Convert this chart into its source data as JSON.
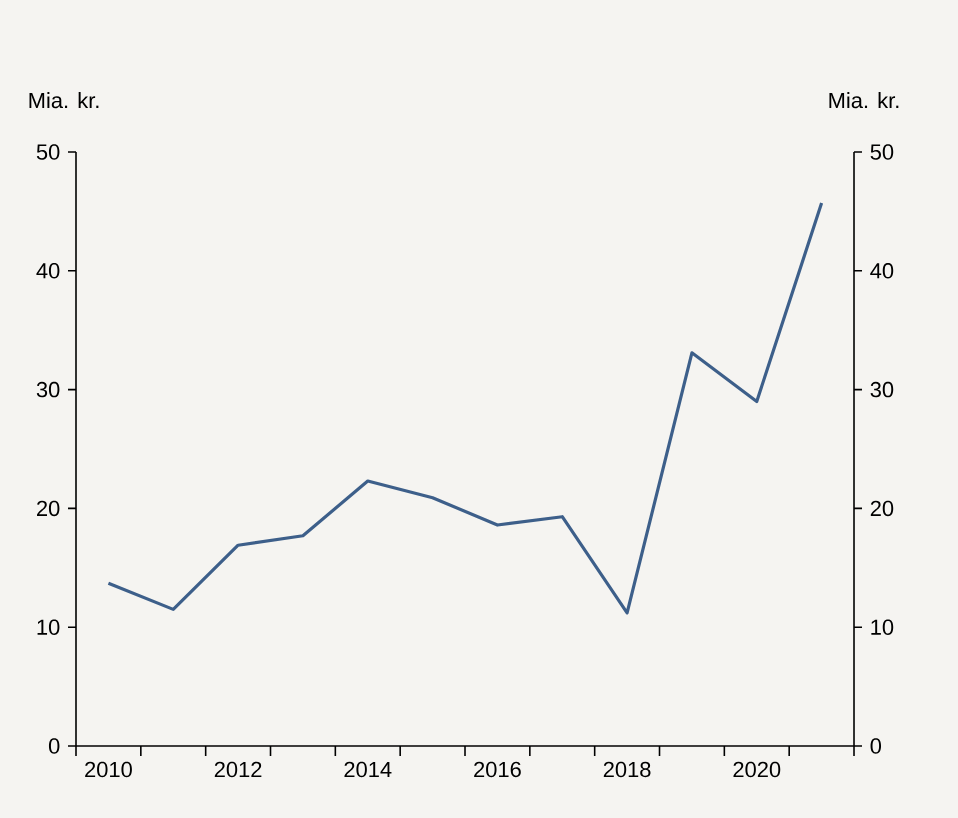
{
  "chart_data": {
    "type": "line",
    "ylabel": "Mia. kr.",
    "y2label": "Mia. kr.",
    "categories": [
      "2010",
      null,
      "2012",
      null,
      "2014",
      null,
      "2016",
      null,
      "2018",
      null,
      "2020",
      null
    ],
    "series": [
      {
        "color": "#3d5f8a",
        "values": [
          13.7,
          11.5,
          16.9,
          17.7,
          22.3,
          20.9,
          18.6,
          19.3,
          11.2,
          33.1,
          29.0,
          45.7
        ]
      }
    ],
    "ylim": [
      0,
      50
    ],
    "yticks": [
      0,
      10,
      20,
      30,
      40,
      50
    ],
    "y2lim": [
      0,
      50
    ],
    "y2ticks": [
      0,
      10,
      20,
      30,
      40,
      50
    ],
    "marker": "none",
    "line_style": "solid"
  }
}
